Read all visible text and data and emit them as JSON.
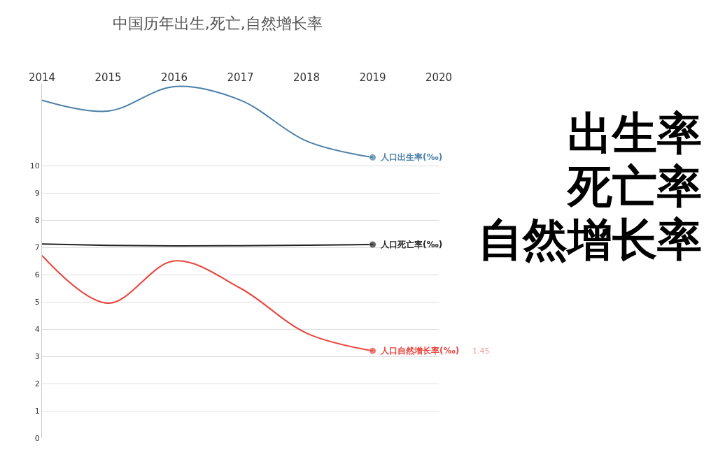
{
  "chart_data": {
    "type": "line",
    "title": "中国历年出生,死亡,自然增长率",
    "x": [
      2014,
      2015,
      2016,
      2017,
      2018,
      2019
    ],
    "series": [
      {
        "name": "人口出生率(‰)",
        "color": "#4a7fa8",
        "values": [
          12.4,
          12.0,
          12.9,
          12.4,
          10.9,
          10.3
        ]
      },
      {
        "name": "人口死亡率(‰)",
        "color": "#222222",
        "values": [
          7.12,
          7.07,
          7.05,
          7.06,
          7.08,
          7.1
        ]
      },
      {
        "name": "人口自然增长率(‰)",
        "color": "#e8453c",
        "values": [
          6.7,
          4.95,
          6.5,
          5.5,
          3.85,
          3.2
        ]
      }
    ],
    "xlim": [
      2014,
      2020
    ],
    "xticks": [
      2014,
      2015,
      2016,
      2017,
      2018,
      2019,
      2020
    ],
    "ylim": [
      0,
      13
    ],
    "yticks": [
      0,
      1,
      2,
      3,
      4,
      5,
      6,
      7,
      8,
      9,
      10
    ],
    "grid": "y",
    "legend": "right",
    "annotations": [
      "1.45",
      "出生率",
      "死亡率",
      "自然增长率"
    ]
  }
}
